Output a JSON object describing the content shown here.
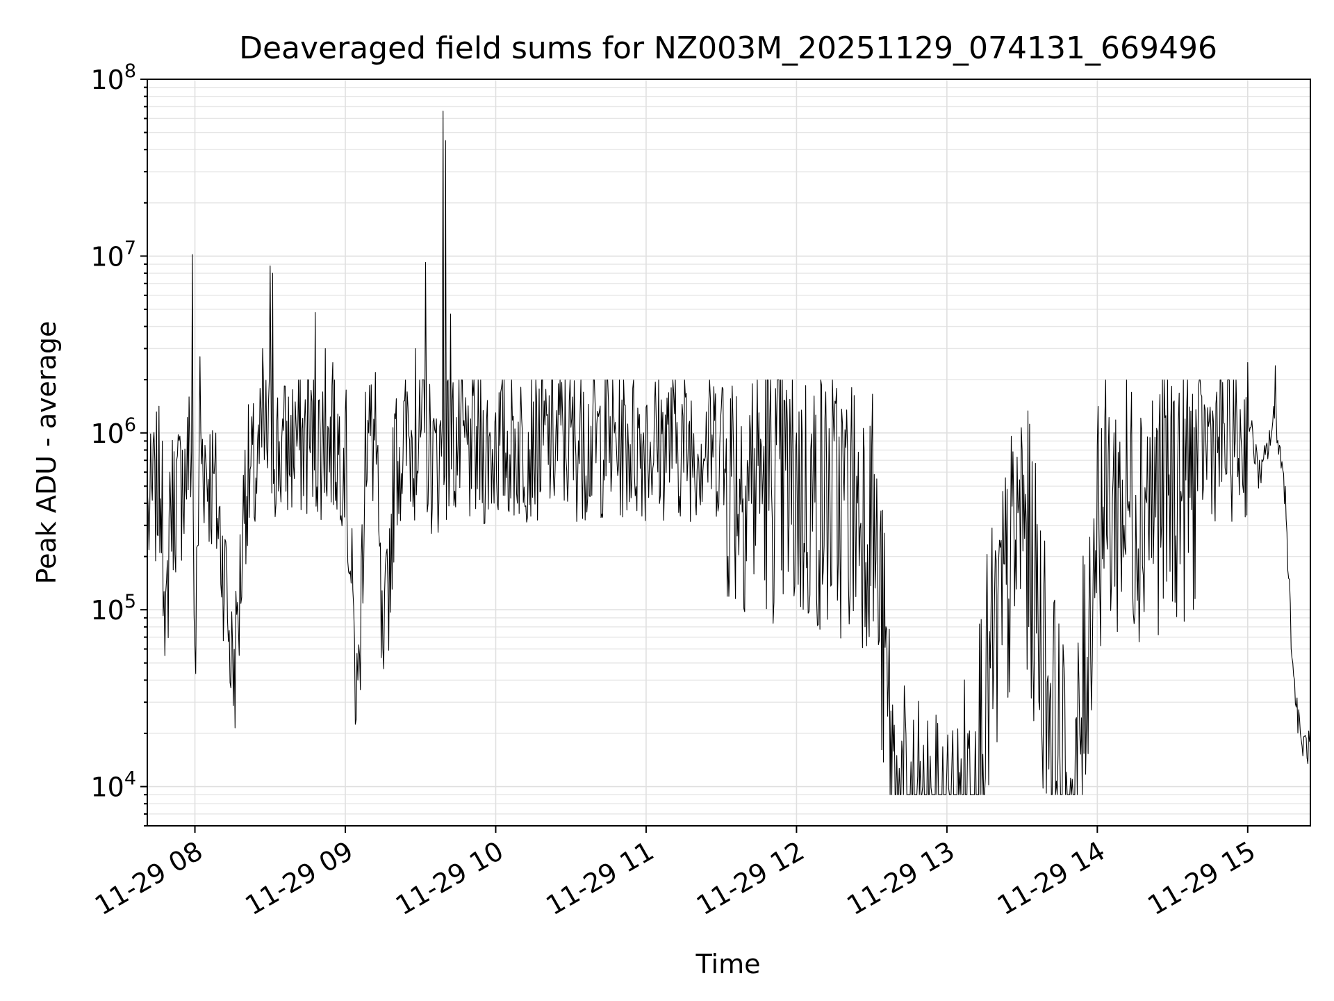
{
  "chart_data": {
    "type": "line",
    "title": "Deaveraged field sums for NZ003M_20251129_074131_669496",
    "xlabel": "Time",
    "ylabel": "Peak ADU - average",
    "yscale": "log",
    "ylim": [
      6000,
      100000000
    ],
    "xlim": [
      "2025-11-29 07:41",
      "2025-11-29 15:25"
    ],
    "grid": true,
    "x_ticks": [
      "11-29 08",
      "11-29 09",
      "11-29 10",
      "11-29 11",
      "11-29 12",
      "11-29 13",
      "11-29 14",
      "11-29 15"
    ],
    "y_tick_labels": [
      {
        "value": 10000,
        "base": "10",
        "exp": "4"
      },
      {
        "value": 100000,
        "base": "10",
        "exp": "5"
      },
      {
        "value": 1000000,
        "base": "10",
        "exp": "6"
      },
      {
        "value": 10000000,
        "base": "10",
        "exp": "7"
      },
      {
        "value": 100000000,
        "base": "10",
        "exp": "8"
      }
    ],
    "series": [
      {
        "color": "#000000",
        "points": [
          [
            "2025-11-29 07:41",
            480000
          ],
          [
            "2025-11-29 07:44",
            700000
          ],
          [
            "2025-11-29 07:47",
            900000
          ],
          [
            "2025-11-29 07:48",
            55000
          ],
          [
            "2025-11-29 07:50",
            600000
          ],
          [
            "2025-11-29 07:55",
            800000
          ],
          [
            "2025-11-29 07:59",
            10200000
          ],
          [
            "2025-11-29 08:00",
            62000
          ],
          [
            "2025-11-29 08:02",
            2700000
          ],
          [
            "2025-11-29 08:08",
            700000
          ],
          [
            "2025-11-29 08:12",
            250000
          ],
          [
            "2025-11-29 08:15",
            65000
          ],
          [
            "2025-11-29 08:17",
            110000
          ],
          [
            "2025-11-29 08:20",
            800000
          ],
          [
            "2025-11-29 08:25",
            900000
          ],
          [
            "2025-11-29 08:27",
            3000000
          ],
          [
            "2025-11-29 08:30",
            8800000
          ],
          [
            "2025-11-29 08:31",
            8000000
          ],
          [
            "2025-11-29 08:35",
            1200000
          ],
          [
            "2025-11-29 08:40",
            1500000
          ],
          [
            "2025-11-29 08:45",
            2000000
          ],
          [
            "2025-11-29 08:48",
            4800000
          ],
          [
            "2025-11-29 08:52",
            3000000
          ],
          [
            "2025-11-29 08:55",
            2500000
          ],
          [
            "2025-11-29 09:00",
            1300000
          ],
          [
            "2025-11-29 09:03",
            130000
          ],
          [
            "2025-11-29 09:05",
            40000
          ],
          [
            "2025-11-29 09:08",
            1700000
          ],
          [
            "2025-11-29 09:12",
            2200000
          ],
          [
            "2025-11-29 09:15",
            60000
          ],
          [
            "2025-11-29 09:20",
            1200000
          ],
          [
            "2025-11-29 09:25",
            1400000
          ],
          [
            "2025-11-29 09:28",
            3000000
          ],
          [
            "2025-11-29 09:32",
            9200000
          ],
          [
            "2025-11-29 09:36",
            1000000
          ],
          [
            "2025-11-29 09:39",
            66000000
          ],
          [
            "2025-11-29 09:40",
            45000000
          ],
          [
            "2025-11-29 09:42",
            4700000
          ],
          [
            "2025-11-29 09:50",
            1200000
          ],
          [
            "2025-11-29 10:00",
            1300000
          ],
          [
            "2025-11-29 10:15",
            1500000
          ],
          [
            "2025-11-29 10:25",
            1900000
          ],
          [
            "2025-11-29 10:35",
            1700000
          ],
          [
            "2025-11-29 10:45",
            1500000
          ],
          [
            "2025-11-29 11:00",
            1400000
          ],
          [
            "2025-11-29 11:10",
            1800000
          ],
          [
            "2025-11-29 11:30",
            1400000
          ],
          [
            "2025-11-29 11:45",
            1300000
          ],
          [
            "2025-11-29 12:00",
            1000000
          ],
          [
            "2025-11-29 12:15",
            900000
          ],
          [
            "2025-11-29 12:30",
            850000
          ],
          [
            "2025-11-29 12:40",
            15000
          ],
          [
            "2025-11-29 12:55",
            9000
          ],
          [
            "2025-11-29 13:05",
            12000
          ],
          [
            "2025-11-29 13:30",
            800000
          ],
          [
            "2025-11-29 13:50",
            11000
          ],
          [
            "2025-11-29 14:00",
            850000
          ],
          [
            "2025-11-29 14:20",
            950000
          ],
          [
            "2025-11-29 14:35",
            1200000
          ],
          [
            "2025-11-29 14:45",
            1400000
          ],
          [
            "2025-11-29 15:00",
            2500000
          ],
          [
            "2025-11-29 15:05",
            600000
          ],
          [
            "2025-11-29 15:11",
            2400000
          ],
          [
            "2025-11-29 15:15",
            500000
          ],
          [
            "2025-11-29 15:18",
            50000
          ],
          [
            "2025-11-29 15:21",
            20000
          ],
          [
            "2025-11-29 15:25",
            18000
          ]
        ]
      }
    ]
  }
}
